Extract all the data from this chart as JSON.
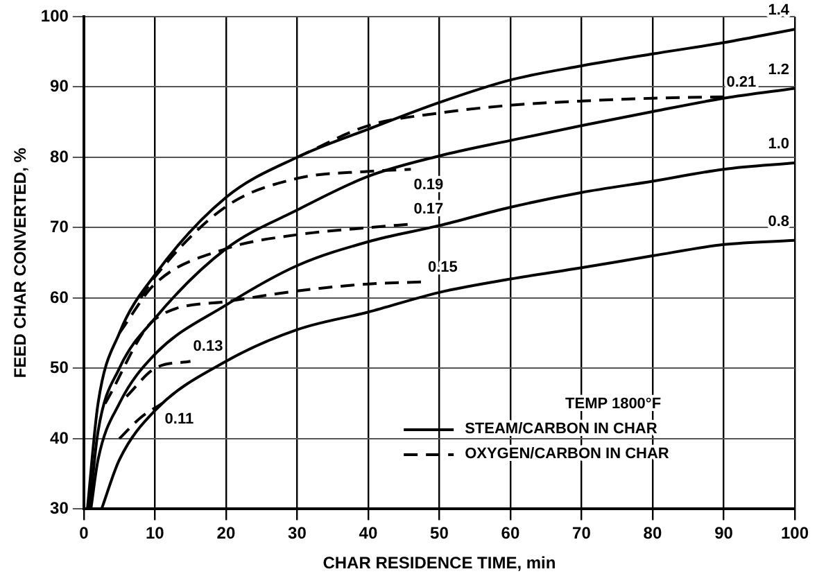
{
  "chart_data": {
    "type": "line",
    "xlabel": "CHAR RESIDENCE TIME, min",
    "ylabel": "FEED CHAR CONVERTED, %",
    "xlim": [
      0,
      100
    ],
    "xticks": [
      0,
      10,
      20,
      30,
      40,
      50,
      60,
      70,
      80,
      90,
      100
    ],
    "ylim": [
      30,
      100
    ],
    "yticks": [
      30,
      40,
      50,
      60,
      70,
      80,
      90,
      100
    ],
    "grid": true,
    "legend": false,
    "marker": "none",
    "annotations": [
      "TEMP 1800°F",
      "STEAM/CARBON IN CHAR",
      "OXYGEN/CARBON IN CHAR"
    ],
    "series": [
      {
        "name": "1.4",
        "color": "#000000",
        "line_style": "solid",
        "x": [
          0.5,
          2,
          5,
          10,
          20,
          30,
          40,
          50,
          60,
          70,
          80,
          90,
          100
        ],
        "values": [
          30,
          45,
          55,
          63.3,
          74.3,
          80,
          84,
          87.8,
          91,
          93,
          94.7,
          96.3,
          98.2
        ]
      },
      {
        "name": "1.2",
        "color": "#000000",
        "line_style": "solid",
        "x": [
          0.8,
          2,
          5,
          10,
          20,
          30,
          40,
          50,
          60,
          70,
          80,
          90,
          100
        ],
        "values": [
          30,
          41,
          50,
          57.1,
          67,
          72.5,
          77.3,
          80.2,
          82.4,
          84.5,
          86.5,
          88.4,
          89.8
        ]
      },
      {
        "name": "1.0",
        "color": "#000000",
        "line_style": "solid",
        "x": [
          1,
          2,
          5,
          10,
          20,
          30,
          40,
          50,
          60,
          70,
          80,
          90,
          100
        ],
        "values": [
          30,
          37,
          45,
          52,
          59,
          64.6,
          68,
          70.3,
          72.9,
          75,
          76.6,
          78.3,
          79.2
        ]
      },
      {
        "name": "0.8",
        "color": "#000000",
        "line_style": "solid",
        "x": [
          2.5,
          5,
          10,
          20,
          30,
          40,
          50,
          60,
          70,
          80,
          90,
          100
        ],
        "values": [
          30,
          37,
          44,
          51,
          55.5,
          58,
          60.8,
          62.7,
          64.3,
          66,
          67.6,
          68.2
        ]
      },
      {
        "name": "0.11",
        "color": "#000000",
        "line_style": "dashed",
        "x": [
          5,
          8,
          11
        ],
        "values": [
          40,
          43,
          45
        ]
      },
      {
        "name": "0.13",
        "color": "#000000",
        "line_style": "dashed",
        "x": [
          6,
          10,
          15
        ],
        "values": [
          46,
          50,
          51
        ]
      },
      {
        "name": "0.15",
        "color": "#000000",
        "line_style": "dashed",
        "x": [
          3,
          10,
          20,
          30,
          40,
          48
        ],
        "values": [
          45,
          57,
          59.5,
          61,
          62,
          62.3
        ]
      },
      {
        "name": "0.17",
        "color": "#000000",
        "line_style": "dashed",
        "x": [
          5,
          10,
          20,
          30,
          40,
          46
        ],
        "values": [
          55,
          62,
          67,
          69,
          70,
          70.5
        ]
      },
      {
        "name": "0.19",
        "color": "#000000",
        "line_style": "dashed",
        "x": [
          8,
          10,
          20,
          30,
          40,
          46
        ],
        "values": [
          60,
          63,
          73,
          77,
          78,
          78.3
        ]
      },
      {
        "name": "0.21",
        "color": "#000000",
        "line_style": "dashed",
        "x": [
          30,
          40,
          50,
          60,
          70,
          80,
          90
        ],
        "values": [
          80,
          84.5,
          86.3,
          87.4,
          88,
          88.4,
          88.6
        ]
      }
    ]
  }
}
